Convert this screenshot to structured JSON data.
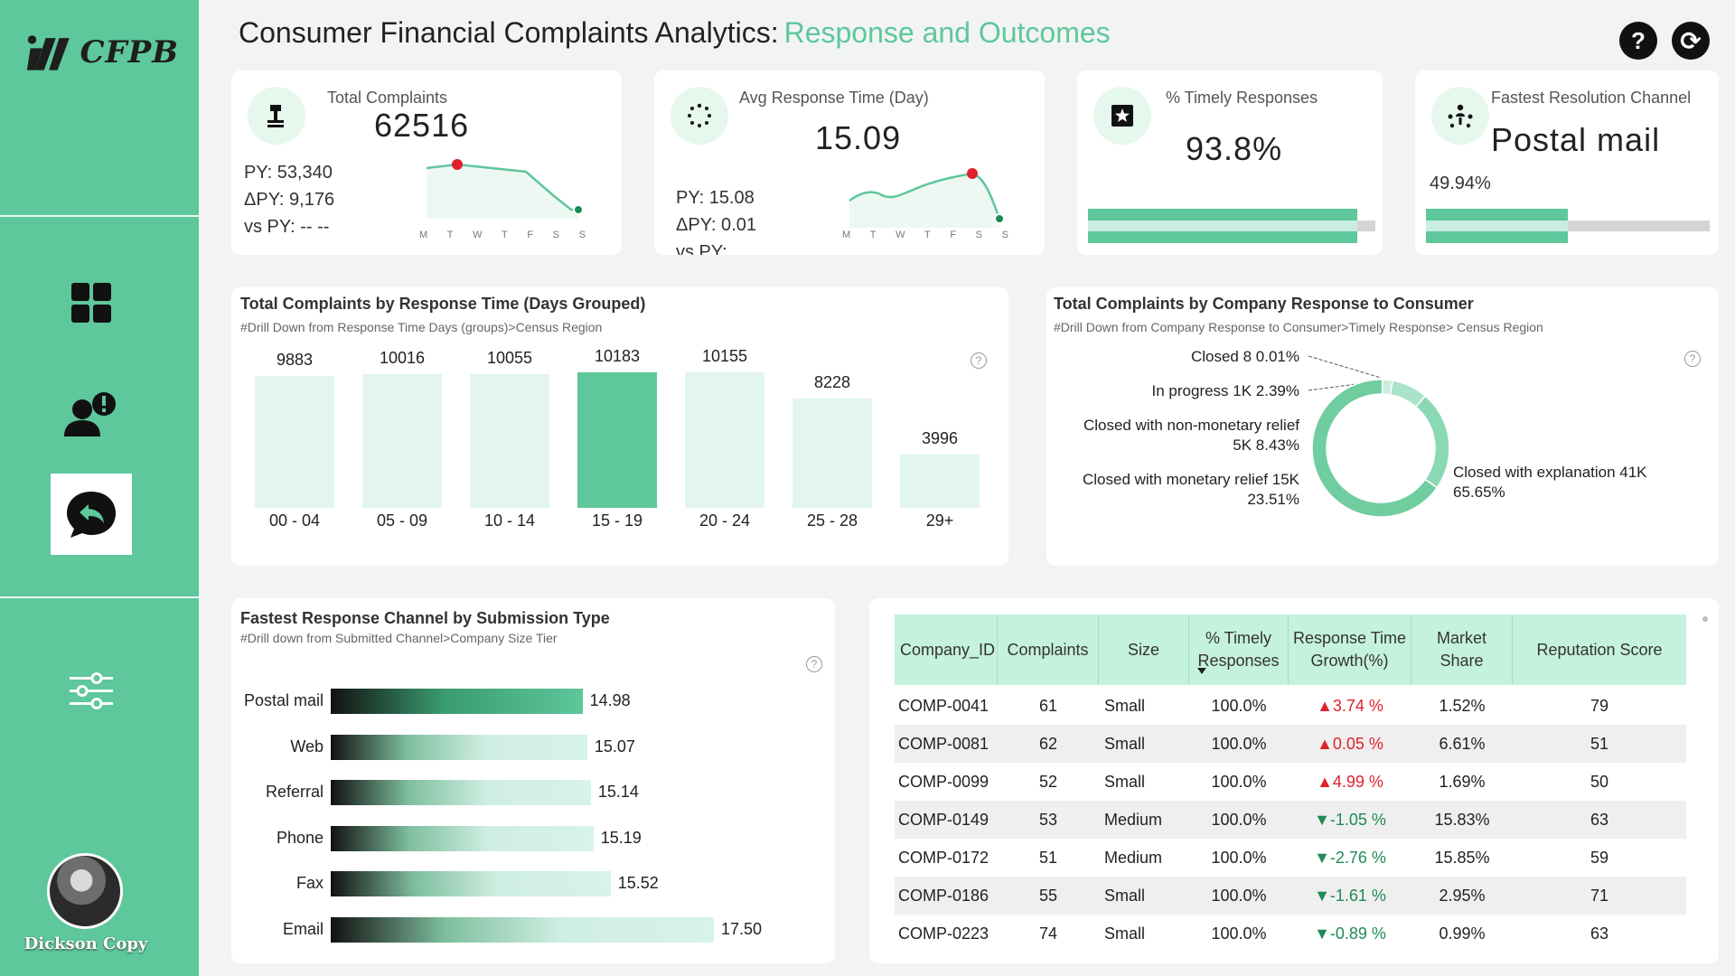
{
  "header": {
    "title": "Consumer Financial Complaints Analytics:",
    "subtitle": "Response and Outcomes",
    "help_label": "?",
    "refresh_label": "⟳"
  },
  "sidebar": {
    "logo_text": "CFPB",
    "user_name": "Dickson Copy"
  },
  "kpis": {
    "total": {
      "label": "Total Complaints",
      "value": "62516",
      "py": "PY: 53,340",
      "dpy": "ΔPY: 9,176",
      "vspy": "vs PY: -- --"
    },
    "avg": {
      "label": "Avg Response Time (Day)",
      "value": "15.09",
      "py": "PY: 15.08",
      "dpy": "ΔPY: 0.01",
      "vspy": "vs PY:"
    },
    "timely": {
      "label": "% Timely Responses",
      "value": "93.8%",
      "fill": 0.938
    },
    "channel": {
      "label": "Fastest Resolution Channel",
      "value": "Postal mail",
      "pct": "49.94%",
      "fill": 0.4994
    },
    "days": [
      "M",
      "T",
      "W",
      "T",
      "F",
      "S",
      "S"
    ]
  },
  "response_time": {
    "title": "Total Complaints by Response Time (Days Grouped)",
    "subtitle": "#Drill Down from Response Time Days (groups)>Census Region",
    "chart_data": {
      "type": "bar",
      "categories": [
        "00 - 04",
        "05 - 09",
        "10 - 14",
        "15 - 19",
        "20 - 24",
        "25 - 28",
        "29+"
      ],
      "values": [
        9883,
        10016,
        10055,
        10183,
        10155,
        8228,
        3996
      ],
      "highlight": "15 - 19"
    }
  },
  "company_response": {
    "title": "Total Complaints by Company Response to Consumer",
    "subtitle": "#Drill Down from Company Response to Consumer>Timely Response> Census Region",
    "chart_data": {
      "type": "pie",
      "labels": [
        "Closed with explanation",
        "Closed with monetary relief",
        "Closed with non-monetary relief",
        "In progress",
        "Closed"
      ],
      "values": [
        65.65,
        23.51,
        8.43,
        2.39,
        0.01
      ]
    },
    "labels": {
      "closed": "Closed 8 0.01%",
      "in_progress": "In progress 1K 2.39%",
      "non_monetary_1": "Closed with non-monetary relief",
      "non_monetary_2": "5K 8.43%",
      "monetary_1": "Closed with monetary relief 15K",
      "monetary_2": "23.51%",
      "explanation_1": "Closed with explanation 41K",
      "explanation_2": "65.65%"
    }
  },
  "channel": {
    "title": "Fastest Response Channel by Submission Type",
    "subtitle": "#Drill down from Submitted Channel>Company Size Tier",
    "chart_data": {
      "type": "bar",
      "orientation": "horizontal",
      "categories": [
        "Postal mail",
        "Web",
        "Referral",
        "Phone",
        "Fax",
        "Email"
      ],
      "values": [
        14.98,
        15.07,
        15.14,
        15.19,
        15.52,
        17.5
      ],
      "labels": [
        "14.98",
        "15.07",
        "15.14",
        "15.19",
        "15.52",
        "17.50"
      ]
    }
  },
  "table": {
    "headers": [
      "Company_ID",
      "Complaints",
      "Size",
      "% Timely\nResponses",
      "Response Time\nGrowth(%)",
      "Market\nShare",
      "Reputation Score"
    ],
    "rows": [
      [
        "COMP-0041",
        "61",
        "Small",
        "100.0%",
        "▲3.74 %",
        "1.52%",
        "79"
      ],
      [
        "COMP-0081",
        "62",
        "Small",
        "100.0%",
        "▲0.05 %",
        "6.61%",
        "51"
      ],
      [
        "COMP-0099",
        "52",
        "Small",
        "100.0%",
        "▲4.99 %",
        "1.69%",
        "50"
      ],
      [
        "COMP-0149",
        "53",
        "Medium",
        "100.0%",
        "▼-1.05 %",
        "15.83%",
        "63"
      ],
      [
        "COMP-0172",
        "51",
        "Medium",
        "100.0%",
        "▼-2.76 %",
        "15.85%",
        "59"
      ],
      [
        "COMP-0186",
        "55",
        "Small",
        "100.0%",
        "▼-1.61 %",
        "2.95%",
        "71"
      ],
      [
        "COMP-0223",
        "74",
        "Small",
        "100.0%",
        "▼-0.89 %",
        "0.99%",
        "63"
      ]
    ]
  },
  "colors": {
    "accent": "#5ec79c",
    "light": "#e2f6ee",
    "up": "#e0212b",
    "down": "#1f8a55"
  }
}
